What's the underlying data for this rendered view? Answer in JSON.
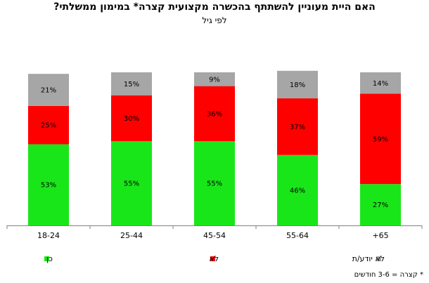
{
  "chart_data": {
    "type": "bar",
    "stacked": true,
    "title": "האם היית מעוניין להשתתף בהכשרה מקצועית קצרה*  במימון ממשלתי?",
    "subtitle": "לפי גיל",
    "categories": [
      "18-24",
      "25-44",
      "45-54",
      "55-64",
      "+65"
    ],
    "series": [
      {
        "name": "כן",
        "color": "#19E619",
        "values": [
          53,
          55,
          55,
          46,
          27
        ],
        "labels": [
          "53%",
          "55%",
          "55%",
          "46%",
          "27%"
        ]
      },
      {
        "name": "לא",
        "color": "#FF0000",
        "values": [
          25,
          30,
          36,
          37,
          59
        ],
        "labels": [
          "25%",
          "30%",
          "36%",
          "37%",
          "59%"
        ]
      },
      {
        "name": "לא יודע/ת",
        "color": "#A6A6A6",
        "values": [
          21,
          15,
          9,
          18,
          14
        ],
        "labels": [
          "21%",
          "15%",
          "9%",
          "18%",
          "14%"
        ]
      }
    ],
    "ylim": [
      0,
      100
    ],
    "grid": false,
    "legend_position": "bottom"
  },
  "footnote": "* קצרה = 3-6 חודשים"
}
